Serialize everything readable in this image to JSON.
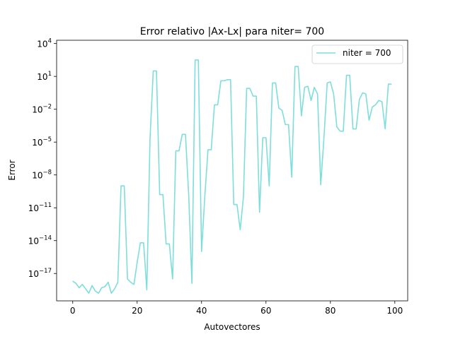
{
  "chart_data": {
    "type": "line",
    "title": "Error relativo |Ax-Lx| para niter= 700",
    "xlabel": "Autovectores",
    "ylabel": "Error",
    "yscale": "log",
    "xlim": [
      -5,
      104
    ],
    "ylim_log10": [
      -19.5,
      4.3
    ],
    "x_ticks": [
      "0",
      "20",
      "40",
      "60",
      "80",
      "100"
    ],
    "y_ticks": [
      {
        "base": "10",
        "exp": "4"
      },
      {
        "base": "10",
        "exp": "1"
      },
      {
        "base": "10",
        "exp": "−2"
      },
      {
        "base": "10",
        "exp": "−5"
      },
      {
        "base": "10",
        "exp": "−8"
      },
      {
        "base": "10",
        "exp": "−11"
      },
      {
        "base": "10",
        "exp": "−14"
      },
      {
        "base": "10",
        "exp": "−17"
      }
    ],
    "legend": {
      "position": "upper right",
      "label": "niter = 700"
    },
    "color": "#7ddedb",
    "grid": false,
    "series": [
      {
        "name": "niter = 700",
        "x": [
          0,
          1,
          2,
          3,
          4,
          5,
          6,
          7,
          8,
          9,
          10,
          11,
          12,
          13,
          14,
          15,
          16,
          17,
          18,
          19,
          20,
          21,
          22,
          23,
          24,
          25,
          26,
          27,
          28,
          29,
          30,
          31,
          32,
          33,
          34,
          35,
          36,
          37,
          38,
          39,
          40,
          41,
          42,
          43,
          44,
          45,
          46,
          47,
          48,
          49,
          50,
          51,
          52,
          53,
          54,
          55,
          56,
          57,
          58,
          59,
          60,
          61,
          62,
          63,
          64,
          65,
          66,
          67,
          68,
          69,
          70,
          71,
          72,
          73,
          74,
          75,
          76,
          77,
          78,
          79,
          80,
          81,
          82,
          83,
          84,
          85,
          86,
          87,
          88,
          89,
          90,
          91,
          92,
          93,
          94,
          95,
          96,
          97,
          98,
          99
        ],
        "log10_y": [
          -17.7,
          -17.9,
          -18.3,
          -18.0,
          -18.4,
          -18.8,
          -18.1,
          -18.6,
          -18.8,
          -18.3,
          -18.2,
          -17.8,
          -18.8,
          -18.4,
          -17.8,
          -9.0,
          -9.0,
          -17.5,
          -17.8,
          -18.0,
          -16.0,
          -14.2,
          -14.2,
          -18.5,
          -4.7,
          1.5,
          1.5,
          -9.8,
          -9.8,
          -14.3,
          -14.3,
          -17.5,
          -5.8,
          -5.8,
          -4.3,
          -4.3,
          -9.8,
          -17.9,
          2.5,
          2.5,
          -15.0,
          -10.0,
          -5.7,
          -5.7,
          -1.6,
          -1.6,
          0.6,
          0.6,
          0.7,
          0.7,
          -10.7,
          -10.7,
          -13.0,
          -10.0,
          -0.1,
          -0.1,
          -0.8,
          -0.8,
          -11.4,
          -4.6,
          -4.6,
          -9.0,
          0.4,
          0.4,
          -1.9,
          -2.1,
          -3.4,
          -3.4,
          -8.2,
          1.9,
          1.9,
          -2.6,
          0.0,
          0.1,
          -1.2,
          0.0,
          -0.6,
          -8.9,
          -4.6,
          0.4,
          0.5,
          -0.6,
          -3.6,
          -4.0,
          -4.0,
          1.1,
          1.1,
          -3.8,
          -3.8,
          -1.1,
          -0.5,
          -0.6,
          -3.0,
          -1.8,
          -1.6,
          -1.2,
          -1.3,
          -3.8,
          0.3,
          0.3
        ]
      }
    ]
  }
}
